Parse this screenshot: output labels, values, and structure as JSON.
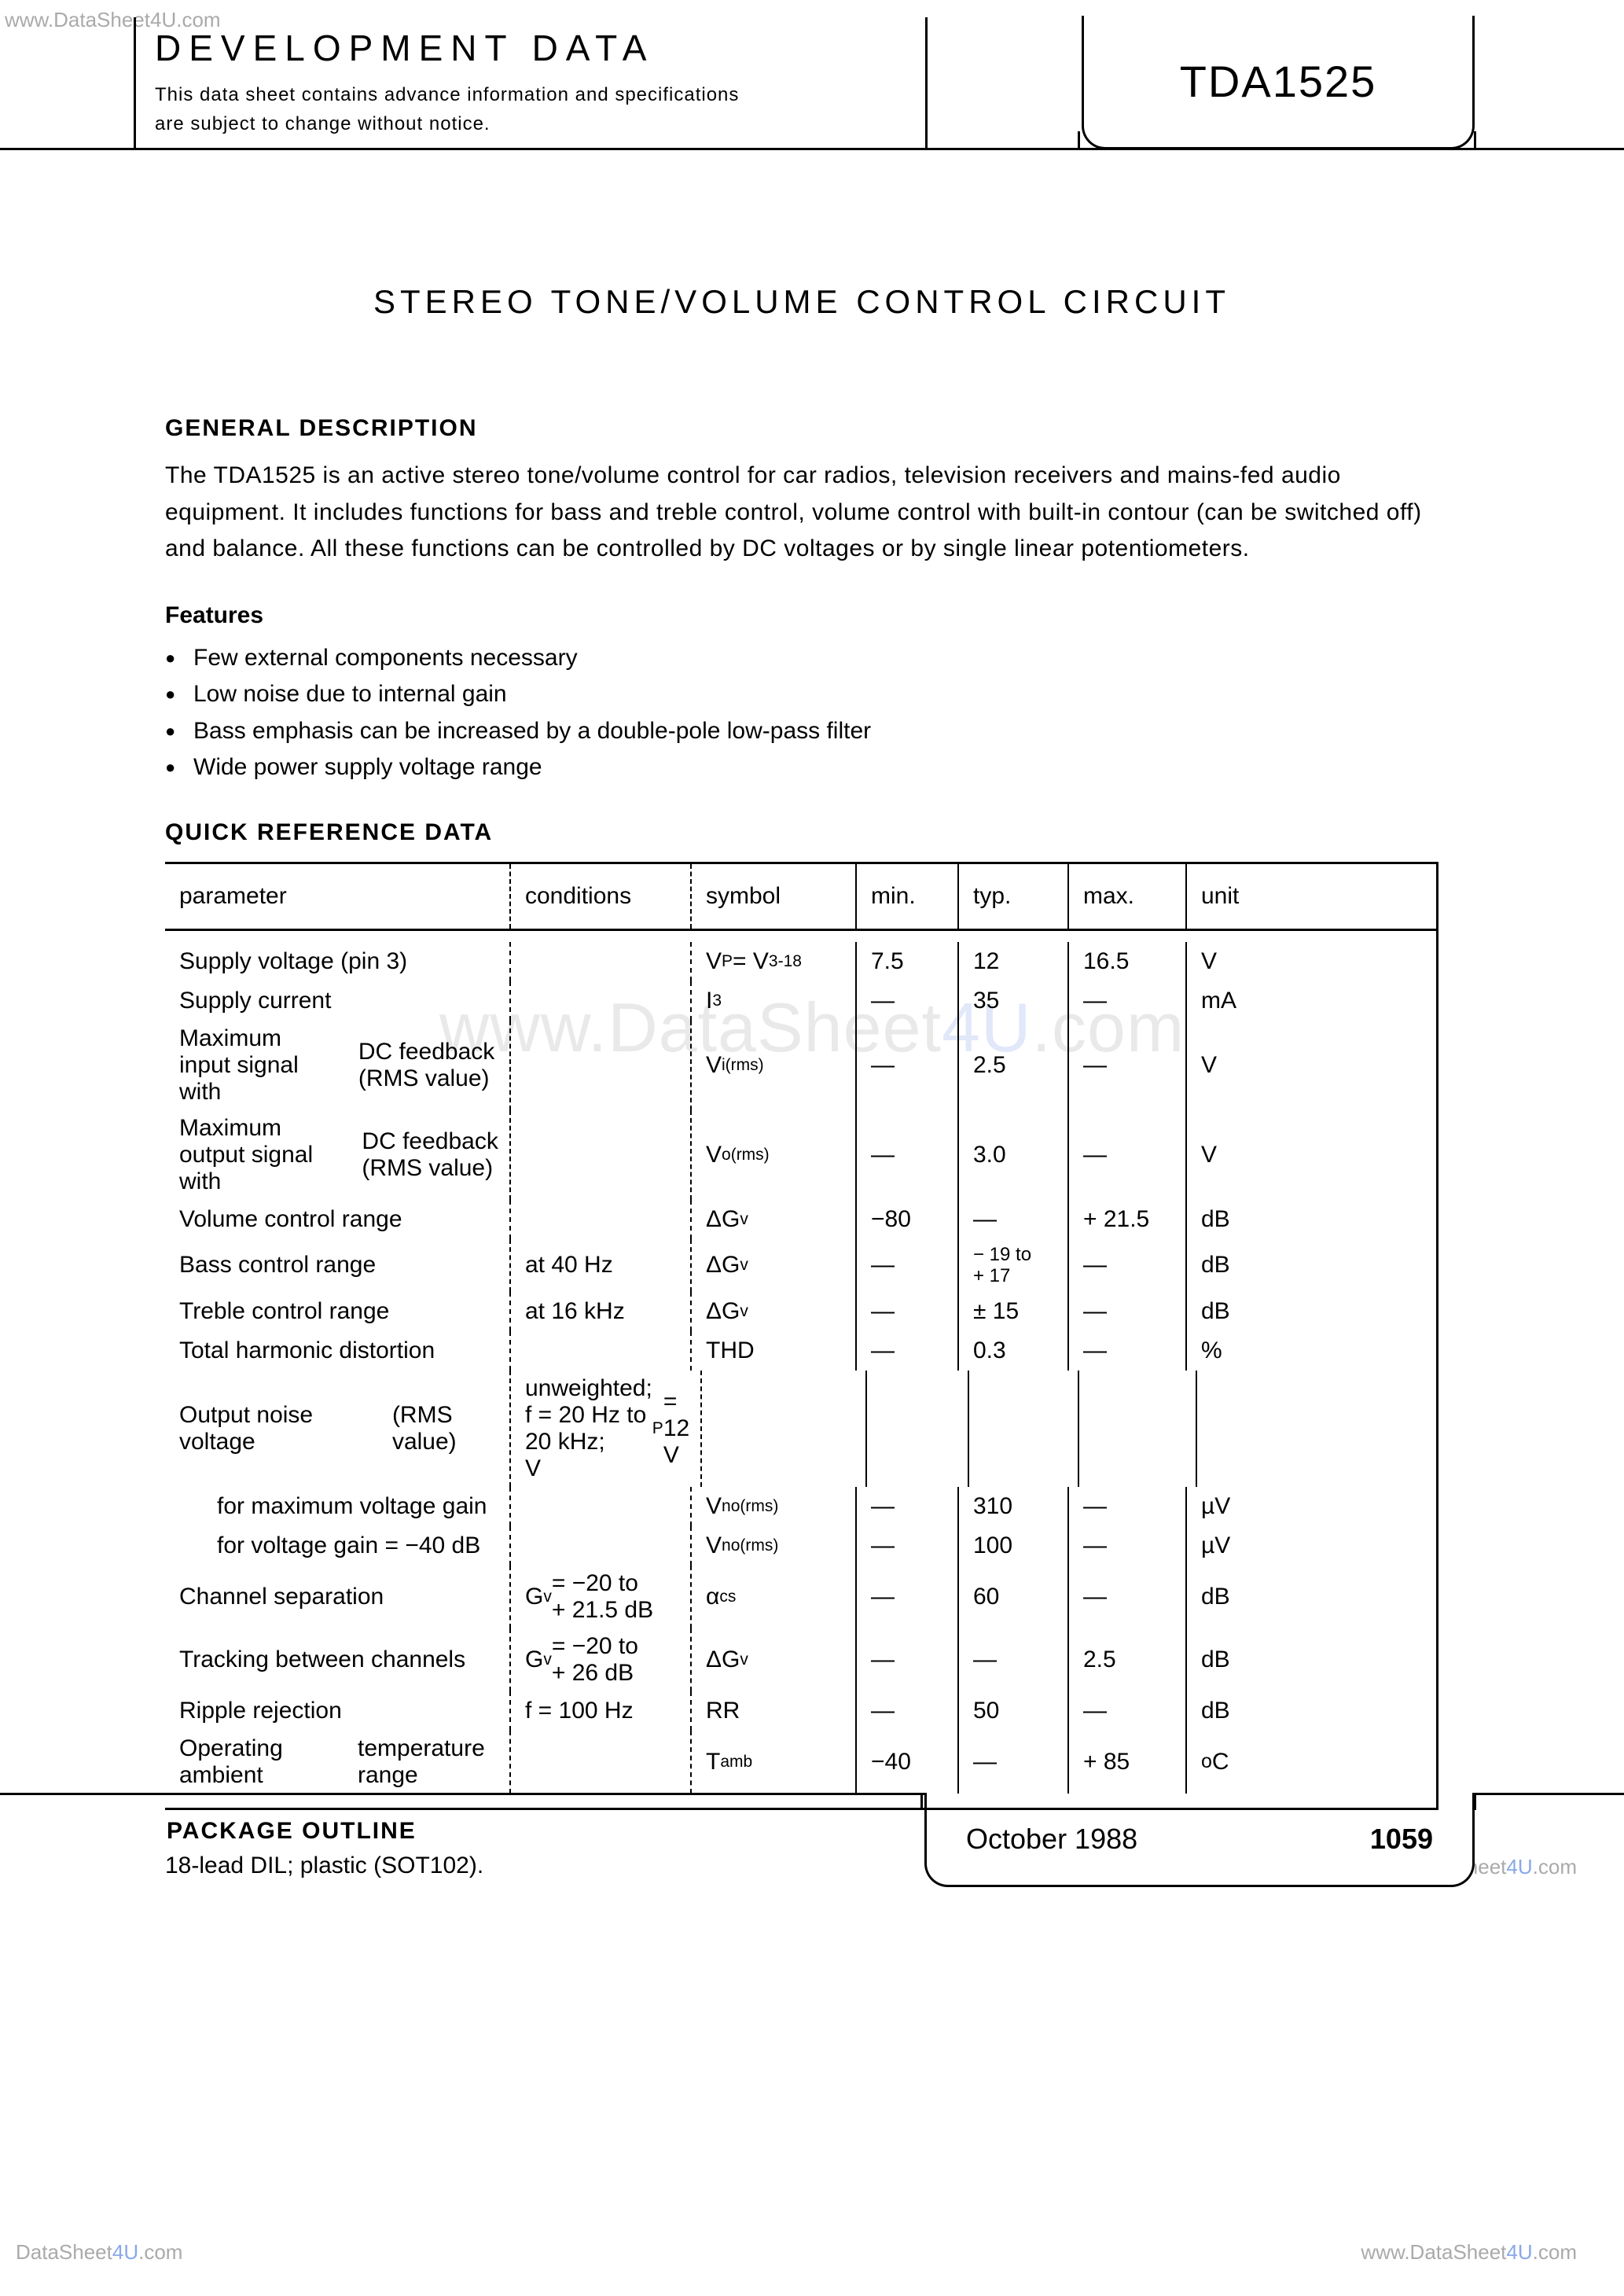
{
  "watermarks": {
    "top_left": "www.DataSheet4U.com",
    "center_prefix": "www.DataSheet",
    "center_suffix": ".com",
    "center_accent": "4U",
    "bottom_right_upper": "www.DataSheet4U.com",
    "bottom_left": "DataSheet4U.com",
    "bottom_right": "www.DataSheet4U.com"
  },
  "header": {
    "dev_title": "DEVELOPMENT DATA",
    "dev_sub": "This data sheet contains advance information and specifications are subject to change without notice.",
    "part_number": "TDA1525"
  },
  "footer": {
    "date": "October  1988",
    "page": "1059"
  },
  "content": {
    "title": "STEREO TONE/VOLUME CONTROL CIRCUIT",
    "sec1_head": "GENERAL DESCRIPTION",
    "sec1_body": "The TDA1525 is an active stereo tone/volume control for car radios, television receivers and mains-fed audio equipment. It includes functions for bass and treble control, volume control with built-in contour (can be switched off) and balance. All these functions can be controlled by DC voltages or by single linear potentiometers.",
    "features_head": "Features",
    "features": [
      "Few external components necessary",
      "Low noise due to internal gain",
      "Bass emphasis can be increased by a double-pole low-pass filter",
      "Wide power supply voltage range"
    ],
    "qr_head": "QUICK REFERENCE DATA",
    "pkg_head": "PACKAGE OUTLINE",
    "pkg_body": "18-lead DIL; plastic (SOT102)."
  },
  "table": {
    "columns": [
      "parameter",
      "conditions",
      "symbol",
      "min.",
      "typ.",
      "max.",
      "unit"
    ],
    "rows": [
      {
        "param": "Supply voltage (pin 3)",
        "cond": "",
        "sym": "V<sub>P</sub> = V<sub>3-18</sub>",
        "min": "7.5",
        "typ": "12",
        "max": "16.5",
        "unit": "V"
      },
      {
        "param": "Supply current",
        "cond": "",
        "sym": "I<sub>3</sub>",
        "min": "—",
        "typ": "35",
        "max": "—",
        "unit": "mA"
      },
      {
        "param": "Maximum input signal with<br><span class='indent'>DC feedback (RMS value)</span>",
        "cond": "",
        "sym": "V<sub>i(rms)</sub>",
        "min": "—",
        "typ": "2.5",
        "max": "—",
        "unit": "V"
      },
      {
        "param": "Maximum output signal with<br><span class='indent'>DC feedback (RMS value)</span>",
        "cond": "",
        "sym": "V<sub>o(rms)</sub>",
        "min": "—",
        "typ": "3.0",
        "max": "—",
        "unit": "V"
      },
      {
        "param": "Volume control range",
        "cond": "",
        "sym": "ΔG<sub>v</sub>",
        "min": "−80",
        "typ": "—",
        "max": "+ 21.5",
        "unit": "dB"
      },
      {
        "param": "Bass control range",
        "cond": "at 40 Hz",
        "sym": "ΔG<sub>v</sub>",
        "min": "—",
        "typ": "<span class='small2'>− 19 to<br>+ 17</span>",
        "max": "—",
        "unit": "dB"
      },
      {
        "param": "Treble control range",
        "cond": "at 16 kHz",
        "sym": "ΔG<sub>v</sub>",
        "min": "—",
        "typ": "± 15",
        "max": "—",
        "unit": "dB"
      },
      {
        "param": "Total harmonic distortion",
        "cond": "",
        "sym": "THD",
        "min": "—",
        "typ": "0.3",
        "max": "—",
        "unit": "%"
      },
      {
        "param": "Output noise voltage<br><span class='indent'>(RMS value)</span>",
        "cond": "unweighted;<br>f = 20 Hz to<br>20 kHz;<br>V<sub>P</sub> = 12 V",
        "sym": "",
        "min": "",
        "typ": "",
        "max": "",
        "unit": ""
      },
      {
        "param": "<span class='indent'>for maximum voltage gain</span>",
        "cond": "",
        "sym": "V<sub>no(rms)</sub>",
        "min": "—",
        "typ": "310",
        "max": "—",
        "unit": "µV"
      },
      {
        "param": "<span class='indent'>for voltage gain = −40 dB</span>",
        "cond": "",
        "sym": "V<sub>no(rms)</sub>",
        "min": "—",
        "typ": "100",
        "max": "—",
        "unit": "µV"
      },
      {
        "param": "Channel separation",
        "cond": "G<sub>v</sub> = −20 to<br>+ 21.5 dB",
        "sym": "α<sub>cs</sub>",
        "min": "—",
        "typ": "60",
        "max": "—",
        "unit": "dB"
      },
      {
        "param": "Tracking between channels",
        "cond": "G<sub>v</sub> = −20 to<br>+ 26 dB",
        "sym": "ΔG<sub>v</sub>",
        "min": "—",
        "typ": "—",
        "max": "2.5",
        "unit": "dB"
      },
      {
        "param": "Ripple rejection",
        "cond": "f = 100 Hz",
        "sym": "RR",
        "min": "—",
        "typ": "50",
        "max": "—",
        "unit": "dB"
      },
      {
        "param": "Operating ambient<br><span class='indent'>temperature range</span>",
        "cond": "",
        "sym": "T<sub>amb</sub>",
        "min": "−40",
        "typ": "—",
        "max": "+ 85",
        "unit": "<sup>o</sup>C"
      }
    ]
  }
}
